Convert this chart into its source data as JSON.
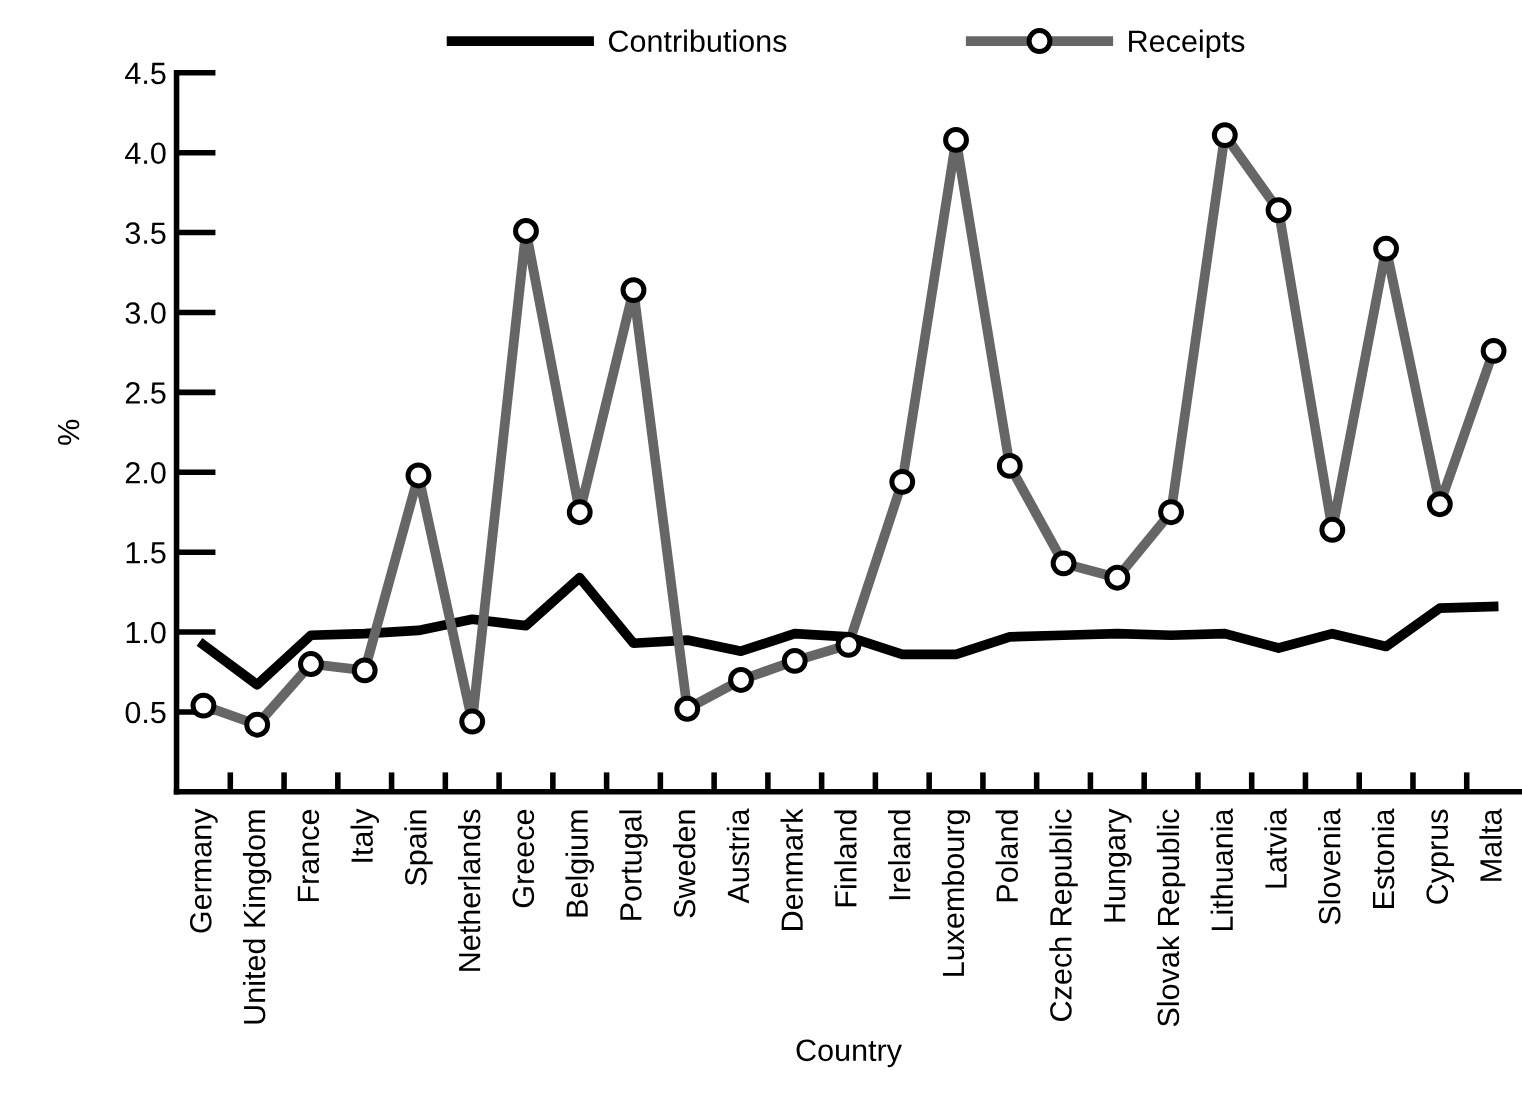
{
  "chart_data": {
    "type": "line",
    "xlabel": "Country",
    "ylabel": "%",
    "categories": [
      "Germany",
      "United Kingdom",
      "France",
      "Italy",
      "Spain",
      "Netherlands",
      "Greece",
      "Belgium",
      "Portugal",
      "Sweden",
      "Austria",
      "Denmark",
      "Finland",
      "Ireland",
      "Luxembourg",
      "Poland",
      "Czech Republic",
      "Hungary",
      "Slovak Republic",
      "Lithuania",
      "Latvia",
      "Slovenia",
      "Estonia",
      "Cyprus",
      "Malta"
    ],
    "series": [
      {
        "name": "Contributions",
        "color": "#000000",
        "marker": "none",
        "values": [
          0.92,
          0.67,
          0.98,
          0.99,
          1.01,
          1.08,
          1.04,
          1.34,
          0.93,
          0.95,
          0.88,
          0.99,
          0.97,
          0.86,
          0.86,
          0.97,
          0.98,
          0.99,
          0.98,
          0.99,
          0.9,
          0.99,
          0.91,
          1.15,
          1.16
        ]
      },
      {
        "name": "Receipts",
        "color": "#666666",
        "marker": "circle",
        "values": [
          0.54,
          0.42,
          0.8,
          0.76,
          1.98,
          0.44,
          3.51,
          1.75,
          3.14,
          0.52,
          0.7,
          0.82,
          0.92,
          1.94,
          4.08,
          2.04,
          1.43,
          1.34,
          1.75,
          4.11,
          3.64,
          1.64,
          3.4,
          1.8,
          2.76
        ]
      }
    ],
    "ylim": [
      0,
      4.5
    ],
    "yticks": [
      0.5,
      {
        "value": 1,
        "label": "1.0"
      },
      1.5,
      {
        "value": 2,
        "label": "2.0"
      },
      2.5,
      {
        "value": 3,
        "label": "3.0"
      },
      3.5,
      {
        "value": 4,
        "label": "4.0"
      },
      4.5
    ],
    "grid": false,
    "legend": "top",
    "line_style": "solid"
  }
}
